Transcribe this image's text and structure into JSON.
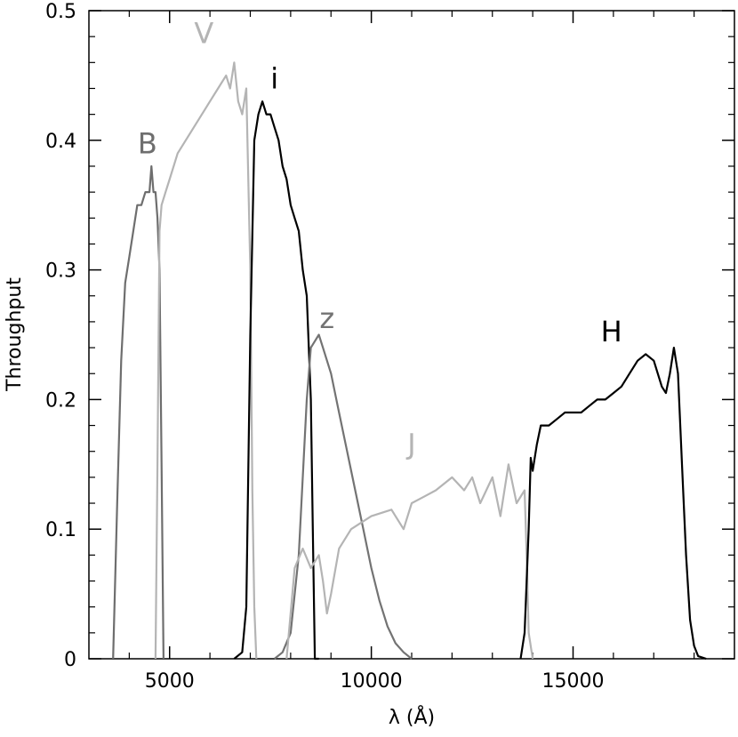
{
  "chart_data": {
    "type": "line",
    "title": "",
    "xlabel": "λ (Å)",
    "ylabel": "Throughput",
    "xlim": [
      3000,
      19000
    ],
    "ylim": [
      0,
      0.5
    ],
    "xticks": [
      5000,
      10000,
      15000
    ],
    "xtick_labels": [
      "5000",
      "10000",
      "15000"
    ],
    "yticks": [
      0,
      0.1,
      0.2,
      0.3,
      0.4,
      0.5
    ],
    "ytick_labels": [
      "0",
      "0.1",
      "0.2",
      "0.3",
      "0.4",
      "0.5"
    ],
    "grid": false,
    "series": [
      {
        "name": "B",
        "color": "#6e6e6e",
        "label_at": [
          4450,
          0.39
        ],
        "x": [
          3600,
          3700,
          3800,
          3900,
          4000,
          4100,
          4200,
          4300,
          4400,
          4500,
          4550,
          4600,
          4650,
          4700,
          4750,
          4800,
          4850
        ],
        "y": [
          0.0,
          0.12,
          0.23,
          0.29,
          0.31,
          0.33,
          0.35,
          0.35,
          0.36,
          0.36,
          0.38,
          0.36,
          0.36,
          0.34,
          0.3,
          0.15,
          0.0
        ]
      },
      {
        "name": "V",
        "color": "#b4b4b4",
        "label_at": [
          5850,
          0.475
        ],
        "x": [
          4650,
          4700,
          4750,
          4800,
          4900,
          5000,
          5200,
          5400,
          5600,
          5800,
          6000,
          6200,
          6400,
          6500,
          6600,
          6700,
          6800,
          6900,
          7000,
          7050,
          7100,
          7150
        ],
        "y": [
          0.0,
          0.15,
          0.33,
          0.35,
          0.36,
          0.37,
          0.39,
          0.4,
          0.41,
          0.42,
          0.43,
          0.44,
          0.45,
          0.44,
          0.46,
          0.43,
          0.42,
          0.44,
          0.3,
          0.13,
          0.04,
          0.0
        ]
      },
      {
        "name": "i",
        "color": "#000000",
        "label_at": [
          7600,
          0.44
        ],
        "x": [
          6600,
          6800,
          6900,
          7000,
          7100,
          7200,
          7300,
          7400,
          7500,
          7600,
          7700,
          7800,
          7900,
          8000,
          8100,
          8200,
          8300,
          8400,
          8500,
          8550,
          8600,
          8700
        ],
        "y": [
          0.0,
          0.005,
          0.04,
          0.25,
          0.4,
          0.42,
          0.43,
          0.42,
          0.42,
          0.41,
          0.4,
          0.38,
          0.37,
          0.35,
          0.34,
          0.33,
          0.3,
          0.28,
          0.2,
          0.1,
          0.0,
          0.0
        ]
      },
      {
        "name": "z",
        "color": "#737373",
        "label_at": [
          8900,
          0.255
        ],
        "x": [
          7600,
          7800,
          8000,
          8200,
          8400,
          8500,
          8600,
          8700,
          8800,
          9000,
          9200,
          9400,
          9600,
          9800,
          10000,
          10200,
          10400,
          10600,
          10800,
          11000
        ],
        "y": [
          0.0,
          0.005,
          0.02,
          0.08,
          0.2,
          0.24,
          0.245,
          0.25,
          0.24,
          0.22,
          0.19,
          0.16,
          0.13,
          0.1,
          0.07,
          0.045,
          0.025,
          0.012,
          0.005,
          0.0
        ]
      },
      {
        "name": "J",
        "color": "#b4b4b4",
        "label_at": [
          11000,
          0.158
        ],
        "x": [
          7900,
          8100,
          8300,
          8500,
          8700,
          8800,
          8900,
          9000,
          9200,
          9500,
          10000,
          10500,
          10800,
          11000,
          11300,
          11600,
          12000,
          12300,
          12500,
          12700,
          13000,
          13200,
          13400,
          13600,
          13800,
          13850,
          13900,
          14000
        ],
        "y": [
          0.0,
          0.07,
          0.085,
          0.07,
          0.08,
          0.06,
          0.035,
          0.05,
          0.085,
          0.1,
          0.11,
          0.115,
          0.1,
          0.12,
          0.125,
          0.13,
          0.14,
          0.13,
          0.14,
          0.12,
          0.14,
          0.11,
          0.15,
          0.12,
          0.13,
          0.08,
          0.02,
          0.0
        ]
      },
      {
        "name": "H",
        "color": "#000000",
        "label_at": [
          15950,
          0.245
        ],
        "x": [
          13700,
          13800,
          13900,
          13950,
          14000,
          14100,
          14200,
          14400,
          14600,
          14800,
          15000,
          15200,
          15400,
          15600,
          15800,
          16000,
          16200,
          16400,
          16600,
          16800,
          17000,
          17200,
          17300,
          17400,
          17500,
          17600,
          17700,
          17800,
          17900,
          18000,
          18100,
          18300
        ],
        "y": [
          0.0,
          0.02,
          0.1,
          0.155,
          0.145,
          0.165,
          0.18,
          0.18,
          0.185,
          0.19,
          0.19,
          0.19,
          0.195,
          0.2,
          0.2,
          0.205,
          0.21,
          0.22,
          0.23,
          0.235,
          0.23,
          0.21,
          0.205,
          0.22,
          0.24,
          0.22,
          0.15,
          0.08,
          0.03,
          0.01,
          0.002,
          0.0
        ]
      }
    ]
  }
}
